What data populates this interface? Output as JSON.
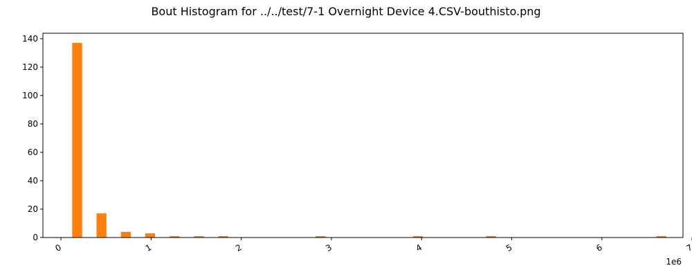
{
  "chart_data": {
    "type": "bar",
    "title": "Bout Histogram for ../../test/7-1 Overnight Device 4.CSV-bouthisto.png",
    "xlabel": "",
    "ylabel": "",
    "x_offset_label": "1e6",
    "x_scale": 1000000,
    "xlim": [
      -200000,
      6900000
    ],
    "ylim": [
      0,
      143.85
    ],
    "bar_width": 110000,
    "bar_color": "#ff7f0e",
    "x_ticks": [
      0,
      1,
      2,
      3,
      4,
      5,
      6,
      7
    ],
    "y_ticks": [
      0,
      20,
      40,
      60,
      80,
      100,
      120,
      140
    ],
    "grid": false,
    "bars": [
      {
        "x": 180000,
        "value": 137
      },
      {
        "x": 450000,
        "value": 17
      },
      {
        "x": 720000,
        "value": 4
      },
      {
        "x": 990000,
        "value": 3
      },
      {
        "x": 1260000,
        "value": 1
      },
      {
        "x": 1530000,
        "value": 1
      },
      {
        "x": 1800000,
        "value": 1
      },
      {
        "x": 2880000,
        "value": 1
      },
      {
        "x": 3960000,
        "value": 1
      },
      {
        "x": 4770000,
        "value": 1
      },
      {
        "x": 6660000,
        "value": 1
      }
    ]
  }
}
